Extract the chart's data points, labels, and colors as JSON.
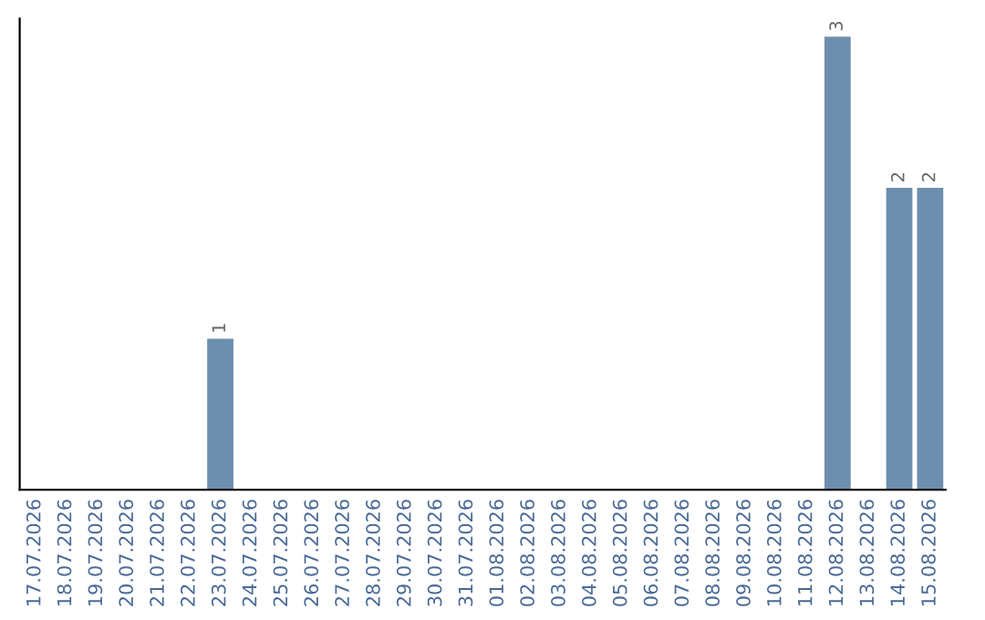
{
  "chart_data": {
    "type": "bar",
    "categories": [
      "17.07.2026",
      "18.07.2026",
      "19.07.2026",
      "20.07.2026",
      "21.07.2026",
      "22.07.2026",
      "23.07.2026",
      "24.07.2026",
      "25.07.2026",
      "26.07.2026",
      "27.07.2026",
      "28.07.2026",
      "29.07.2026",
      "30.07.2026",
      "31.07.2026",
      "01.08.2026",
      "02.08.2026",
      "03.08.2026",
      "04.08.2026",
      "05.08.2026",
      "06.08.2026",
      "07.08.2026",
      "08.08.2026",
      "09.08.2026",
      "10.08.2026",
      "11.08.2026",
      "12.08.2026",
      "13.08.2026",
      "14.08.2026",
      "15.08.2026"
    ],
    "values": [
      0,
      0,
      0,
      0,
      0,
      0,
      1,
      0,
      0,
      0,
      0,
      0,
      0,
      0,
      0,
      0,
      0,
      0,
      0,
      0,
      0,
      0,
      0,
      0,
      0,
      0,
      3,
      0,
      2,
      2
    ],
    "value_labels": [
      null,
      null,
      null,
      null,
      null,
      null,
      "1",
      null,
      null,
      null,
      null,
      null,
      null,
      null,
      null,
      null,
      null,
      null,
      null,
      null,
      null,
      null,
      null,
      null,
      null,
      null,
      "3",
      null,
      "2",
      "2"
    ],
    "color": "#6d8fae",
    "tick_labels": "x",
    "grid": false
  }
}
